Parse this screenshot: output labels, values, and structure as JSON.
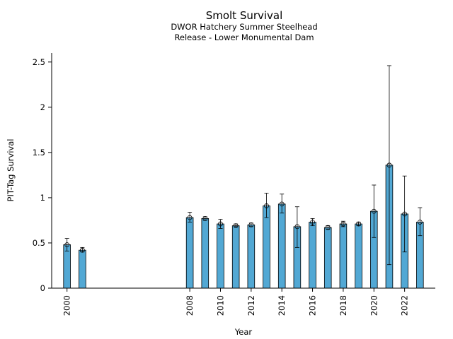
{
  "chart_data": {
    "type": "bar",
    "title": "Smolt Survival",
    "subtitle_lines": [
      "DWOR Hatchery Summer Steelhead",
      "Release - Lower Monumental Dam"
    ],
    "xlabel": "Year",
    "ylabel": "PIT-Tag Survival",
    "xlim": [
      1999.0,
      2024.0
    ],
    "ylim": [
      0,
      2.6
    ],
    "xticks": [
      2000,
      2008,
      2010,
      2012,
      2014,
      2016,
      2018,
      2020,
      2022
    ],
    "yticks": [
      0,
      0.5,
      1,
      1.5,
      2,
      2.5
    ],
    "ytick_labels": [
      "0",
      "0.5",
      "1",
      "1.5",
      "2",
      "2.5"
    ],
    "grid": false,
    "bar_color": "#52a8d4",
    "series": [
      {
        "x": [
          2000,
          2001,
          2008,
          2009,
          2010,
          2011,
          2012,
          2013,
          2014,
          2015,
          2016,
          2017,
          2018,
          2019,
          2020,
          2021,
          2022,
          2023
        ],
        "values": [
          0.48,
          0.42,
          0.78,
          0.77,
          0.71,
          0.69,
          0.7,
          0.91,
          0.93,
          0.68,
          0.73,
          0.67,
          0.71,
          0.71,
          0.85,
          1.36,
          0.82,
          0.73
        ],
        "lower": [
          0.41,
          0.4,
          0.73,
          0.75,
          0.66,
          0.68,
          0.68,
          0.78,
          0.83,
          0.45,
          0.69,
          0.65,
          0.68,
          0.69,
          0.56,
          0.26,
          0.4,
          0.58
        ],
        "upper": [
          0.55,
          0.45,
          0.84,
          0.79,
          0.76,
          0.71,
          0.72,
          1.05,
          1.04,
          0.9,
          0.77,
          0.69,
          0.74,
          0.73,
          1.14,
          2.46,
          1.24,
          0.89
        ]
      }
    ]
  }
}
